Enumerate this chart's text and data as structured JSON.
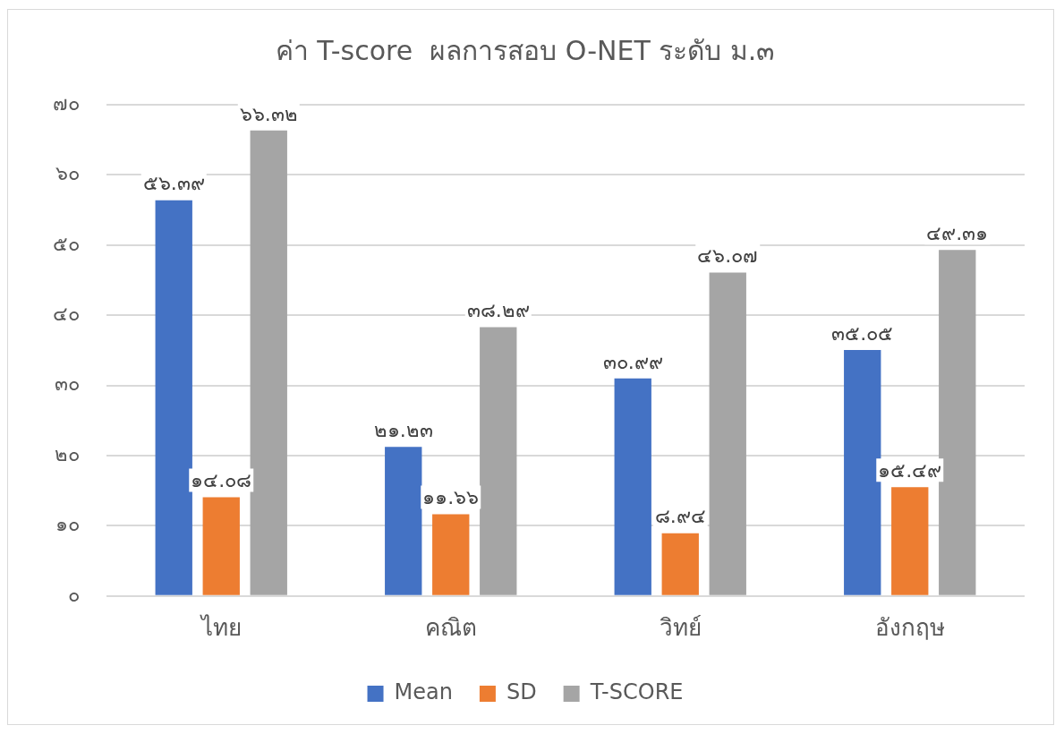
{
  "chart_data": {
    "type": "bar",
    "title": "ค่า T-score  ผลการสอบ O-NET ระดับ ม.๓",
    "categories": [
      "ไทย",
      "คณิต",
      "วิทย์",
      "อังกฤษ"
    ],
    "series": [
      {
        "name": "Mean",
        "color": "#4472c4",
        "values": [
          56.39,
          21.23,
          30.99,
          35.05
        ],
        "value_labels": [
          "๕๖.๓๙",
          "๒๑.๒๓",
          "๓๐.๙๙",
          "๓๕.๐๕"
        ]
      },
      {
        "name": "SD",
        "color": "#ed7d31",
        "values": [
          14.08,
          11.66,
          8.94,
          15.49
        ],
        "value_labels": [
          "๑๔.๐๘",
          "๑๑.๖๖",
          "๘.๙๔",
          "๑๕.๔๙"
        ]
      },
      {
        "name": "T-SCORE",
        "color": "#a5a5a5",
        "values": [
          66.32,
          38.29,
          46.07,
          49.31
        ],
        "value_labels": [
          "๖๖.๓๒",
          "๓๘.๒๙",
          "๔๖.๐๗",
          "๔๙.๓๑"
        ]
      }
    ],
    "ylim": [
      0,
      70
    ],
    "yticks": [
      {
        "value": 0,
        "label": "๐"
      },
      {
        "value": 10,
        "label": "๑๐"
      },
      {
        "value": 20,
        "label": "๒๐"
      },
      {
        "value": 30,
        "label": "๓๐"
      },
      {
        "value": 40,
        "label": "๔๐"
      },
      {
        "value": 50,
        "label": "๕๐"
      },
      {
        "value": 60,
        "label": "๖๐"
      },
      {
        "value": 70,
        "label": "๗๐"
      }
    ],
    "grid": "y",
    "legend": "bottom"
  }
}
